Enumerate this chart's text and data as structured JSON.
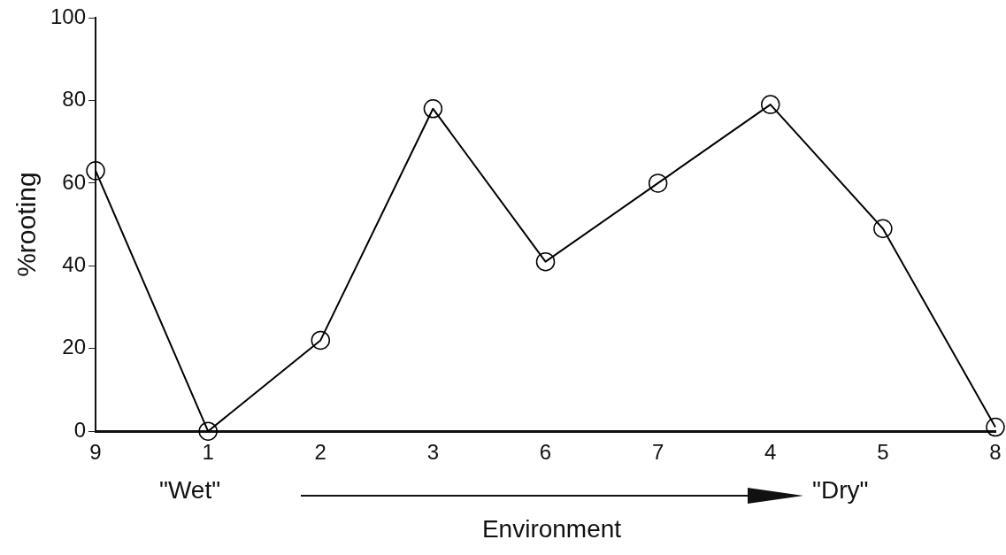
{
  "chart_data": {
    "type": "line",
    "xlabel": "Environment",
    "ylabel": "%rooting",
    "categories": [
      "9",
      "1",
      "2",
      "3",
      "6",
      "7",
      "4",
      "5",
      "8"
    ],
    "series": [
      {
        "color": "#000000",
        "values": [
          63,
          0,
          22,
          78,
          41,
          60,
          79,
          49,
          1
        ]
      }
    ],
    "ylim": [
      0,
      100
    ],
    "yticks": [
      0,
      20,
      40,
      60,
      80,
      100
    ],
    "grid": false,
    "legend": false,
    "marker": "circle",
    "line_style": "solid",
    "annotations": [
      "\"Wet\"",
      "\"Dry\""
    ]
  }
}
